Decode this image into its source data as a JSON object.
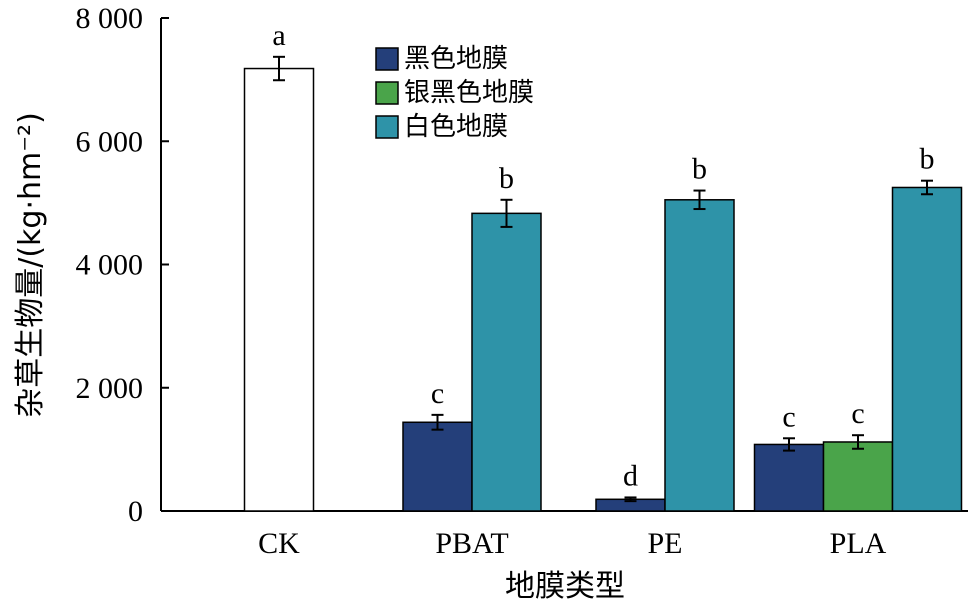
{
  "chart_data": {
    "type": "bar",
    "categories": [
      "CK",
      "PBAT",
      "PE",
      "PLA"
    ],
    "xlabel": "地膜类型",
    "ylabel": "杂草生物量/(kg·hm⁻²)",
    "ylim": [
      0,
      8000
    ],
    "yticks": [
      0,
      2000,
      4000,
      6000,
      8000
    ],
    "ytick_labels": [
      "0",
      "2 000",
      "4 000",
      "6 000",
      "8 000"
    ],
    "legend": {
      "placement": "top-center",
      "entries": [
        "黑色地膜",
        "银黑色地膜",
        "白色地膜"
      ]
    },
    "grid": false,
    "series": [
      {
        "name": "CK",
        "color": "#ffffff",
        "values": [
          7180,
          null,
          null,
          null
        ],
        "errors": [
          190,
          null,
          null,
          null
        ],
        "letters": [
          "a",
          null,
          null,
          null
        ]
      },
      {
        "name": "黑色地膜",
        "color": "#243f7a",
        "values": [
          null,
          1440,
          190,
          1080
        ],
        "errors": [
          null,
          120,
          30,
          100
        ],
        "letters": [
          null,
          "c",
          "d",
          "c"
        ]
      },
      {
        "name": "银黑色地膜",
        "color": "#4aa44a",
        "values": [
          null,
          null,
          null,
          1120
        ],
        "errors": [
          null,
          null,
          null,
          110
        ],
        "letters": [
          null,
          null,
          null,
          "c"
        ]
      },
      {
        "name": "白色地膜",
        "color": "#2e93a8",
        "values": [
          null,
          4830,
          5050,
          5250
        ],
        "errors": [
          null,
          220,
          150,
          110
        ],
        "letters": [
          null,
          "b",
          "b",
          "b"
        ]
      }
    ]
  }
}
